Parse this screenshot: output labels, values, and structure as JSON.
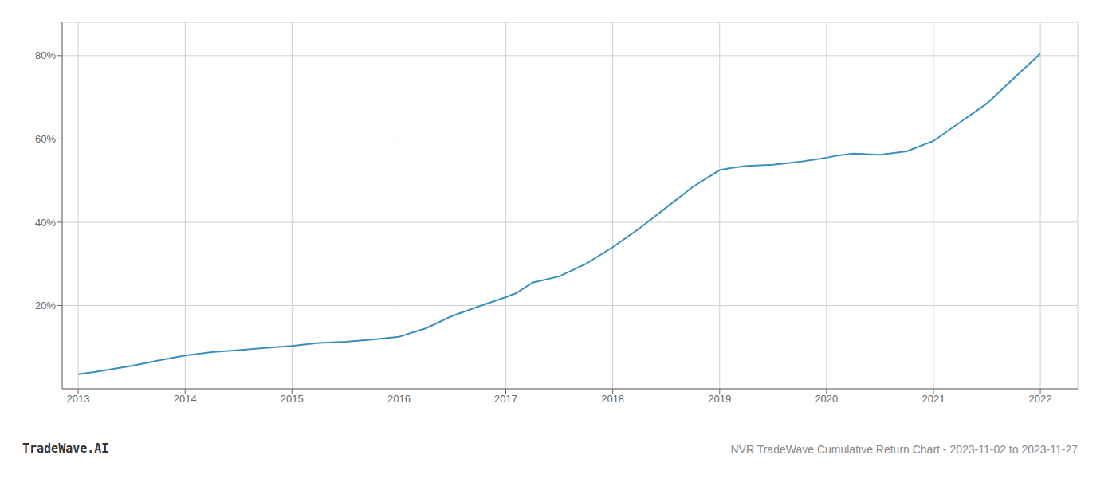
{
  "chart_data": {
    "type": "line",
    "title": "NVR TradeWave Cumulative Return Chart - 2023-11-02 to 2023-11-27",
    "annotations": [
      "TradeWave.AI"
    ],
    "x": [
      2013.0,
      2013.15,
      2013.5,
      2013.75,
      2014.0,
      2014.25,
      2014.5,
      2014.75,
      2015.0,
      2015.08,
      2015.25,
      2015.5,
      2015.75,
      2016.0,
      2016.25,
      2016.5,
      2016.75,
      2017.0,
      2017.1,
      2017.25,
      2017.5,
      2017.75,
      2018.0,
      2018.25,
      2018.5,
      2018.75,
      2019.0,
      2019.1,
      2019.25,
      2019.5,
      2019.75,
      2020.0,
      2020.1,
      2020.25,
      2020.5,
      2020.75,
      2021.0,
      2021.25,
      2021.5,
      2021.75,
      2022.0
    ],
    "values": [
      3.5,
      4.0,
      5.5,
      6.8,
      8.0,
      8.8,
      9.3,
      9.8,
      10.3,
      10.5,
      11.0,
      11.3,
      11.8,
      12.5,
      14.5,
      17.5,
      19.8,
      22.0,
      23.0,
      25.5,
      27.0,
      30.0,
      34.0,
      38.5,
      43.5,
      48.5,
      52.5,
      53.0,
      53.5,
      53.8,
      54.5,
      55.5,
      56.0,
      56.5,
      56.2,
      57.0,
      59.5,
      64.0,
      68.5,
      74.5,
      80.5
    ],
    "color": "#3a8fc0",
    "xlim": [
      2012.85,
      2022.35
    ],
    "xticks": [
      2013,
      2014,
      2015,
      2016,
      2017,
      2018,
      2019,
      2020,
      2021,
      2022
    ],
    "ylim": [
      0,
      88
    ],
    "yticks": [
      {
        "value": 20,
        "label": "20%"
      },
      {
        "value": 40,
        "label": "40%"
      },
      {
        "value": 60,
        "label": "60%"
      },
      {
        "value": 80,
        "label": "80%"
      }
    ],
    "grid": true
  }
}
